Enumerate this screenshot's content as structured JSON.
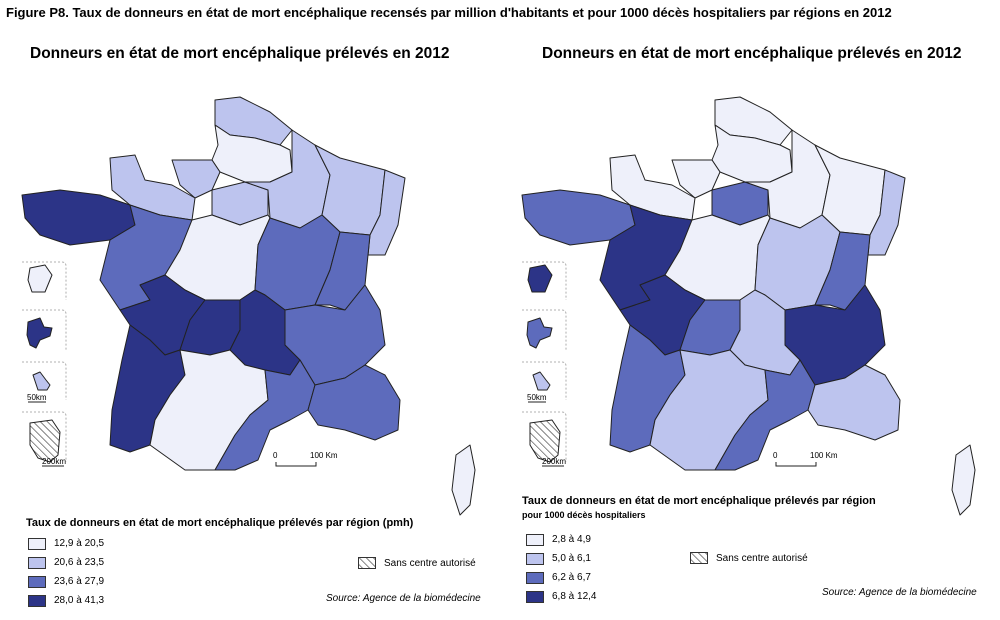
{
  "figure_title": "Figure P8. Taux de donneurs en état de mort encéphalique recensés par million d'habitants et pour 1000 décès hospitaliers par régions en 2012",
  "colors": {
    "class1": "#eef0fa",
    "class2": "#bdc4ee",
    "class3": "#5d6bbc",
    "class4": "#2c3487",
    "outline": "#222222"
  },
  "maps": [
    {
      "title": "Donneurs en état de mort encéphalique prélevés en 2012",
      "legend_title": "Taux de donneurs en état de mort encéphalique prélevés par région (pmh)",
      "legend_subtitle": "",
      "legend": [
        "12,9 à 20,5",
        "20,6 à 23,5",
        "23,6 à 27,9",
        "28,0 à 41,3"
      ],
      "hatch_label": "Sans centre autorisé",
      "source": "Source: Agence de la biomédecine",
      "scale_main": [
        "0",
        "100 Km"
      ],
      "scale_inset_1": "50km",
      "scale_inset_2": "200km",
      "region_classes": {
        "nord-pas-de-calais": 2,
        "picardie": 1,
        "haute-normandie": 2,
        "basse-normandie": 2,
        "ile-de-france": 2,
        "champagne-ardenne": 2,
        "lorraine": 2,
        "alsace": 2,
        "bretagne": 4,
        "pays-de-la-loire": 3,
        "centre": 1,
        "bourgogne": 3,
        "franche-comte": 3,
        "poitou-charentes": 4,
        "limousin": 4,
        "auvergne": 4,
        "rhone-alpes": 3,
        "aquitaine": 4,
        "midi-pyrenees": 1,
        "languedoc-roussillon": 3,
        "paca": 3,
        "corse": 1,
        "reunion": 1,
        "martinique": 4,
        "guadeloupe": 2
      }
    },
    {
      "title": "Donneurs en état de mort encéphalique prélevés en 2012",
      "legend_title": "Taux de donneurs en état de mort encéphalique prélevés par région",
      "legend_subtitle": "pour 1000 décès hospitaliers",
      "legend": [
        "2,8 à 4,9",
        "5,0 à 6,1",
        "6,2 à 6,7",
        "6,8 à 12,4"
      ],
      "hatch_label": "Sans centre autorisé",
      "source": "Source: Agence de la biomédecine",
      "scale_main": [
        "0",
        "100 Km"
      ],
      "scale_inset_1": "50km",
      "scale_inset_2": "200km",
      "region_classes": {
        "nord-pas-de-calais": 1,
        "picardie": 1,
        "haute-normandie": 1,
        "basse-normandie": 1,
        "ile-de-france": 3,
        "champagne-ardenne": 1,
        "lorraine": 1,
        "alsace": 2,
        "bretagne": 3,
        "pays-de-la-loire": 4,
        "centre": 1,
        "bourgogne": 2,
        "franche-comte": 3,
        "poitou-charentes": 4,
        "limousin": 3,
        "auvergne": 2,
        "rhone-alpes": 4,
        "aquitaine": 3,
        "midi-pyrenees": 2,
        "languedoc-roussillon": 3,
        "paca": 2,
        "corse": 1,
        "reunion": 4,
        "martinique": 3,
        "guadeloupe": 2
      }
    }
  ]
}
